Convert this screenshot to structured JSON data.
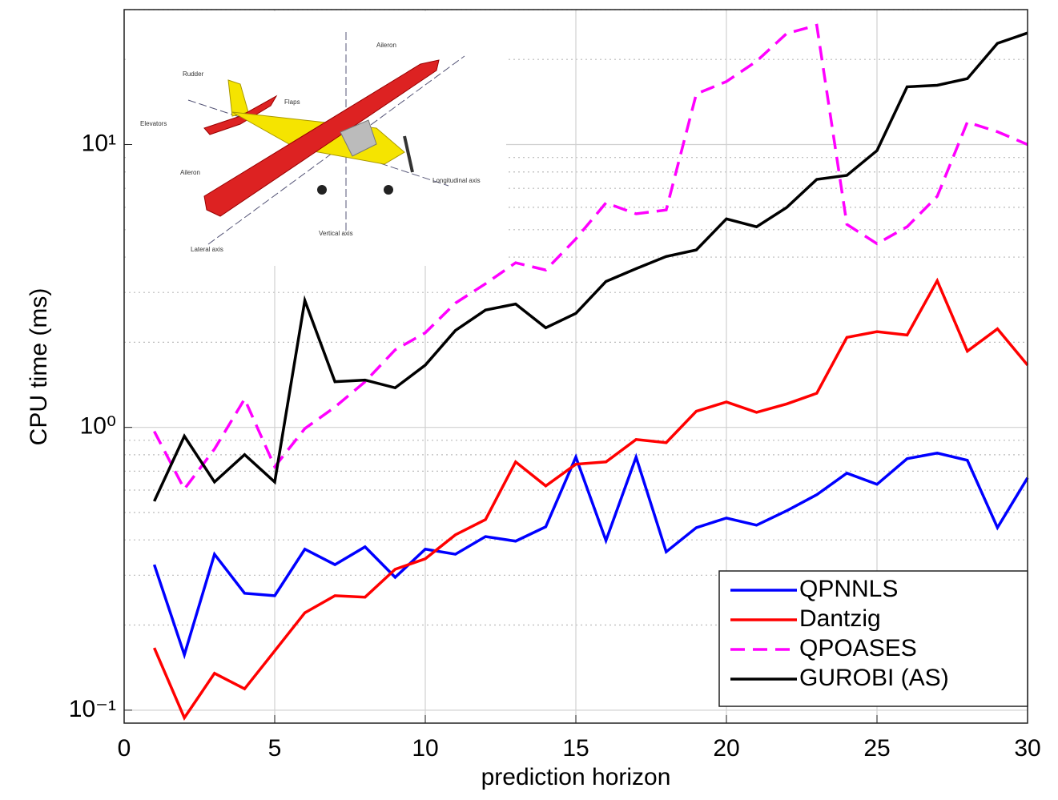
{
  "chart_data": {
    "type": "line",
    "xlabel": "prediction horizon",
    "ylabel": "CPU time (ms)",
    "x": [
      1,
      2,
      3,
      4,
      5,
      6,
      7,
      8,
      9,
      10,
      11,
      12,
      13,
      14,
      15,
      16,
      17,
      18,
      19,
      20,
      21,
      22,
      23,
      24,
      25,
      26,
      27,
      28,
      29,
      30
    ],
    "series": [
      {
        "name": "QPNNLS",
        "color": "#0000ff",
        "linestyle": "solid",
        "values": [
          0.327,
          0.157,
          0.356,
          0.259,
          0.254,
          0.371,
          0.327,
          0.378,
          0.295,
          0.371,
          0.356,
          0.411,
          0.396,
          0.445,
          0.785,
          0.398,
          0.785,
          0.363,
          0.442,
          0.478,
          0.451,
          0.507,
          0.578,
          0.689,
          0.629,
          0.775,
          0.811,
          0.765,
          0.442,
          0.663
        ]
      },
      {
        "name": "Dantzig",
        "color": "#ff0000",
        "linestyle": "solid",
        "values": [
          0.166,
          0.094,
          0.135,
          0.119,
          0.162,
          0.221,
          0.254,
          0.251,
          0.315,
          0.343,
          0.417,
          0.472,
          0.755,
          0.621,
          0.741,
          0.755,
          0.906,
          0.883,
          1.14,
          1.23,
          1.13,
          1.21,
          1.32,
          2.08,
          2.18,
          2.12,
          3.3,
          1.86,
          2.23,
          1.66
        ]
      },
      {
        "name": "QPOASES",
        "color": "#ff00ff",
        "linestyle": "dashed",
        "values": [
          0.968,
          0.605,
          0.838,
          1.26,
          0.726,
          0.99,
          1.18,
          1.45,
          1.88,
          2.16,
          2.75,
          3.22,
          3.82,
          3.6,
          4.64,
          6.22,
          5.69,
          5.87,
          15.1,
          16.7,
          19.7,
          24.7,
          26.4,
          5.22,
          4.46,
          5.12,
          6.56,
          12.0,
          11.1,
          10.0
        ]
      },
      {
        "name": "GUROBI (AS)",
        "color": "#000000",
        "linestyle": "solid",
        "values": [
          0.548,
          0.931,
          0.641,
          0.801,
          0.641,
          2.81,
          1.45,
          1.47,
          1.38,
          1.66,
          2.2,
          2.6,
          2.73,
          2.25,
          2.53,
          3.28,
          3.64,
          4.02,
          4.24,
          5.46,
          5.12,
          5.99,
          7.53,
          7.78,
          9.52,
          16.0,
          16.2,
          17.1,
          22.8,
          24.8
        ]
      }
    ],
    "xlim": [
      0,
      30
    ],
    "xticks": [
      0,
      5,
      10,
      15,
      20,
      25,
      30
    ],
    "ylim": [
      0.09,
      30
    ],
    "ylog": true,
    "yticks": [
      {
        "value": 0.1,
        "label": "10⁻¹"
      },
      {
        "value": 1,
        "label": "10⁰"
      },
      {
        "value": 10,
        "label": "10¹"
      }
    ],
    "minor_yticks": [
      0.2,
      0.3,
      0.4,
      0.5,
      0.6,
      0.7,
      0.8,
      0.9,
      2,
      3,
      4,
      5,
      6,
      7,
      8,
      9,
      20,
      30
    ],
    "grid": true,
    "legend": "lower right",
    "inset_labels": [
      "Aileron",
      "Rudder",
      "Flaps",
      "Elevators",
      "Aileron",
      "Longitudinal axis",
      "Vertical axis",
      "Lateral axis"
    ]
  }
}
